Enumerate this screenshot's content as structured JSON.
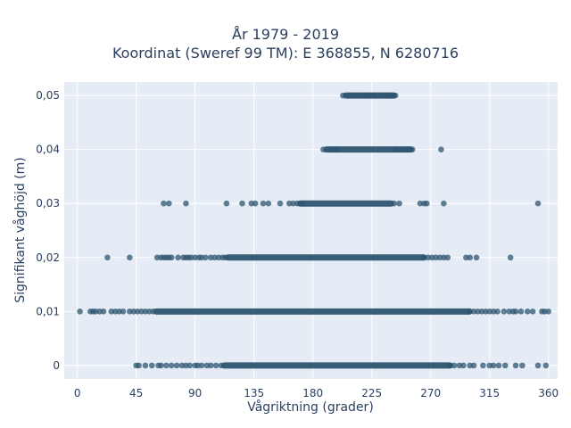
{
  "chart_data": {
    "type": "scatter",
    "title": [
      "År 1979 - 2019",
      "Koordinat (Sweref 99 TM): E 368855, N 6280716"
    ],
    "xlabel": "Vågriktning (grader)",
    "ylabel": "Signifikant våghöjd (m)",
    "xlim": [
      -10,
      367
    ],
    "ylim": [
      -0.0025,
      0.0525
    ],
    "xticks": [
      0,
      45,
      90,
      135,
      180,
      225,
      270,
      315,
      360
    ],
    "xtick_labels": [
      "0",
      "45",
      "90",
      "135",
      "180",
      "225",
      "270",
      "315",
      "360"
    ],
    "yticks": [
      0,
      0.01,
      0.02,
      0.03,
      0.04,
      0.05
    ],
    "ytick_labels": [
      "0",
      "0,01",
      "0,02",
      "0,03",
      "0,04",
      "0,05"
    ],
    "grid": true,
    "colors": {
      "marker": "#2e5570",
      "plot_bg": "#e5ecf6",
      "grid": "#ffffff",
      "text": "#2a3f5f"
    },
    "series": [
      {
        "y": 0.05,
        "dense_range": [
          205,
          242
        ],
        "points": [
          203,
          208,
          212,
          216,
          220,
          224,
          228,
          232,
          236,
          240,
          243
        ]
      },
      {
        "y": 0.04,
        "dense_range": [
          190,
          255
        ],
        "points": [
          188,
          193,
          198,
          243,
          248,
          253,
          256,
          278
        ]
      },
      {
        "y": 0.03,
        "dense_range": [
          170,
          240
        ],
        "points": [
          66,
          70,
          83,
          114,
          126,
          133,
          136,
          142,
          146,
          155,
          162,
          165,
          168,
          172,
          242,
          246,
          262,
          265,
          267,
          280,
          352
        ]
      },
      {
        "y": 0.02,
        "dense_range": [
          115,
          265
        ],
        "points": [
          23,
          40,
          61,
          64,
          66,
          68,
          70,
          72,
          77,
          81,
          83,
          85,
          87,
          90,
          93,
          95,
          98,
          102,
          105,
          108,
          111,
          113,
          265,
          268,
          271,
          274,
          277,
          280,
          283,
          297,
          300,
          305,
          331
        ]
      },
      {
        "y": 0.01,
        "dense_range": [
          60,
          300
        ],
        "points": [
          2,
          10,
          12,
          14,
          17,
          20,
          26,
          29,
          32,
          35,
          40,
          43,
          46,
          49,
          52,
          55,
          58,
          300,
          303,
          306,
          309,
          312,
          315,
          318,
          321,
          326,
          330,
          333,
          335,
          339,
          344,
          348,
          355,
          357,
          360
        ]
      },
      {
        "y": 0,
        "dense_range": [
          112,
          285
        ],
        "points": [
          45,
          47,
          52,
          57,
          62,
          64,
          68,
          72,
          76,
          80,
          83,
          86,
          90,
          92,
          95,
          99,
          102,
          106,
          110,
          285,
          288,
          292,
          295,
          300,
          303,
          310,
          315,
          318,
          322,
          327,
          335,
          340,
          352,
          358
        ]
      }
    ]
  }
}
